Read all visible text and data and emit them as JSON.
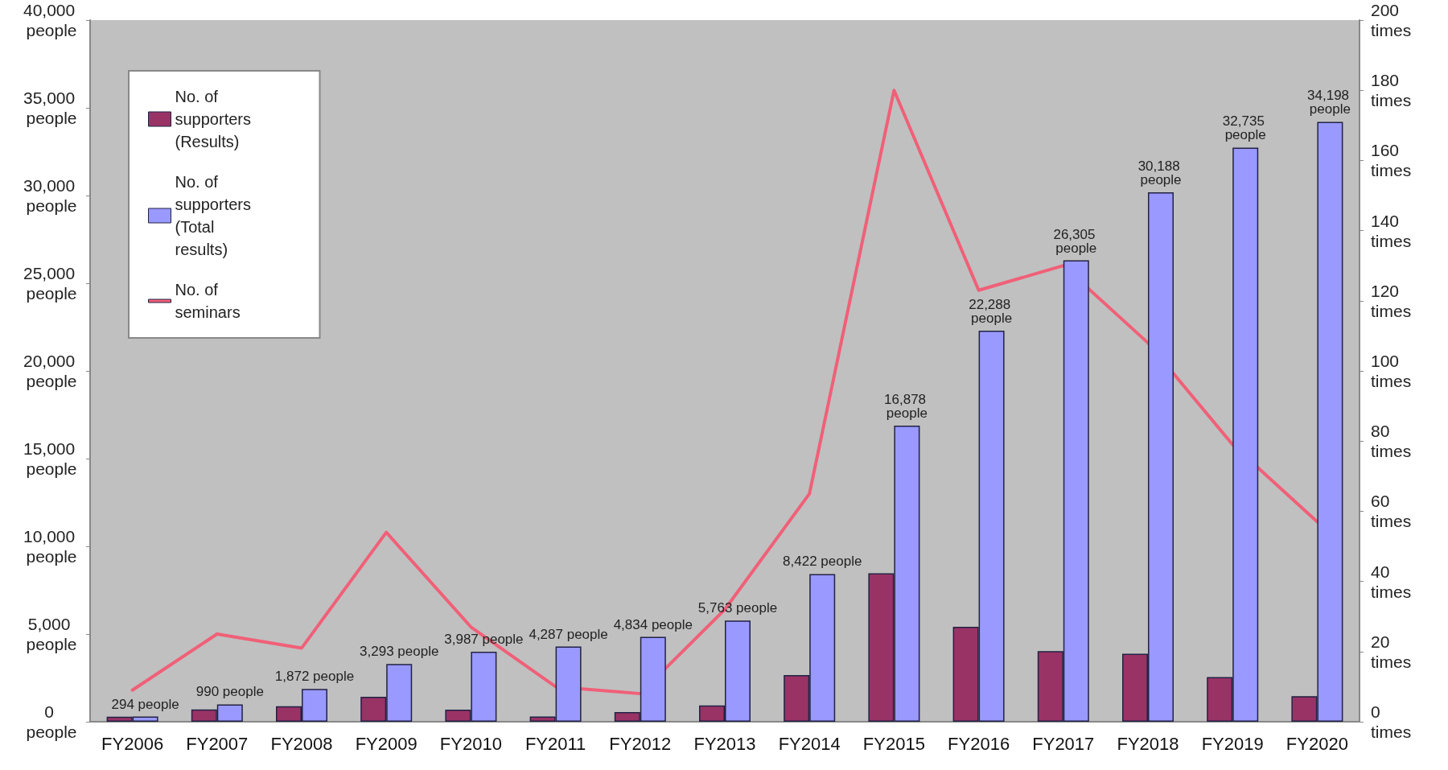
{
  "chart_data": {
    "type": "bar",
    "categories": [
      "FY2006",
      "FY2007",
      "FY2008",
      "FY2009",
      "FY2010",
      "FY2011",
      "FY2012",
      "FY2013",
      "FY2014",
      "FY2015",
      "FY2016",
      "FY2017",
      "FY2018",
      "FY2019",
      "FY2020"
    ],
    "series": [
      {
        "name": "No. of supporters (Results)",
        "color": "#993366",
        "values": [
          290,
          700,
          880,
          1420,
          690,
          300,
          550,
          930,
          2660,
          8460,
          5410,
          4020,
          3880,
          2550,
          1460
        ]
      },
      {
        "name": "No. of supporters (Total results)",
        "color": "#9999ff",
        "values": [
          294,
          990,
          1872,
          3293,
          3987,
          4287,
          4834,
          5763,
          8422,
          16878,
          22288,
          26305,
          30188,
          32735,
          34198
        ],
        "value_labels": [
          "294 people",
          "990 people",
          "1,872 people",
          "3,293 people",
          "3,987 people",
          "4,287 people",
          "4,834 people",
          "5,763 people",
          "8,422 people",
          "16,878 people",
          "22,288 people",
          "26,305 people",
          "30,188 people",
          "32,735 people",
          "34,198 people"
        ]
      },
      {
        "name": "No. of seminars",
        "type": "line",
        "axis": "y2",
        "color": "#f06078",
        "values": [
          9,
          25,
          21,
          54,
          27,
          10,
          8,
          32,
          65,
          180,
          123,
          130,
          108,
          79,
          57
        ],
        "marker": "none"
      }
    ],
    "ylim": [
      0,
      40000
    ],
    "yticks": [
      {
        "value": 0,
        "label": "0 people"
      },
      {
        "value": 5000,
        "label": "5,000 people"
      },
      {
        "value": 10000,
        "label": "10,000 people"
      },
      {
        "value": 15000,
        "label": "15,000 people"
      },
      {
        "value": 20000,
        "label": "20,000 people"
      },
      {
        "value": 25000,
        "label": "25,000 people"
      },
      {
        "value": 30000,
        "label": "30,000 people"
      },
      {
        "value": 35000,
        "label": "35,000 people"
      },
      {
        "value": 40000,
        "label": "40,000 people"
      }
    ],
    "y2lim": [
      0,
      200
    ],
    "y2ticks": [
      {
        "value": 0,
        "label": "0 times"
      },
      {
        "value": 20,
        "label": "20 times"
      },
      {
        "value": 40,
        "label": "40 times"
      },
      {
        "value": 60,
        "label": "60 times"
      },
      {
        "value": 80,
        "label": "80 times"
      },
      {
        "value": 100,
        "label": "100 times"
      },
      {
        "value": 120,
        "label": "120 times"
      },
      {
        "value": 140,
        "label": "140 times"
      },
      {
        "value": 160,
        "label": "160 times"
      },
      {
        "value": 180,
        "label": "180 times"
      },
      {
        "value": 200,
        "label": "200 times"
      }
    ],
    "legend": "top left"
  }
}
